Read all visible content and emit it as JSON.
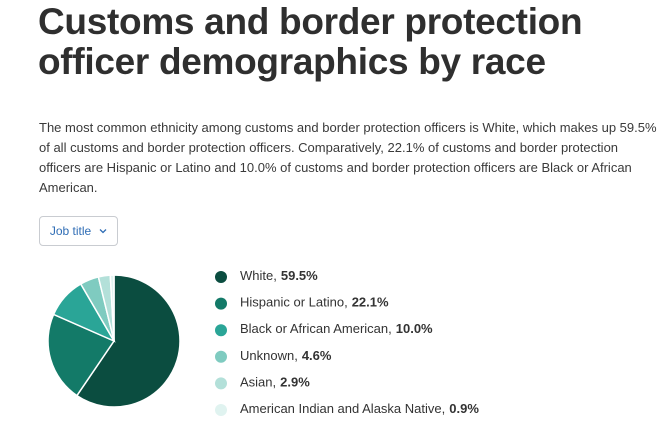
{
  "chart_data": {
    "type": "pie",
    "title": "Customs and border protection officer demographics by race",
    "description": "The most common ethnicity among customs and border protection officers is White, which makes up 59.5% of all customs and border protection officers. Comparatively, 22.1% of customs and border protection officers are Hispanic or Latino and 10.0% of customs and border protection officers are Black or African American.",
    "filter_button": "Job title",
    "categories": [
      "White",
      "Hispanic or Latino",
      "Black or African American",
      "Unknown",
      "Asian",
      "American Indian and Alaska Native"
    ],
    "values": [
      59.5,
      22.1,
      10.0,
      4.6,
      2.9,
      0.9
    ],
    "value_labels": [
      "59.5%",
      "22.1%",
      "10.0%",
      "4.6%",
      "2.9%",
      "0.9%"
    ],
    "label_separator": ",",
    "colors": [
      "#0b4d40",
      "#137a68",
      "#2aa597",
      "#7fcbc0",
      "#b3e0d9",
      "#e0f3f0"
    ]
  }
}
